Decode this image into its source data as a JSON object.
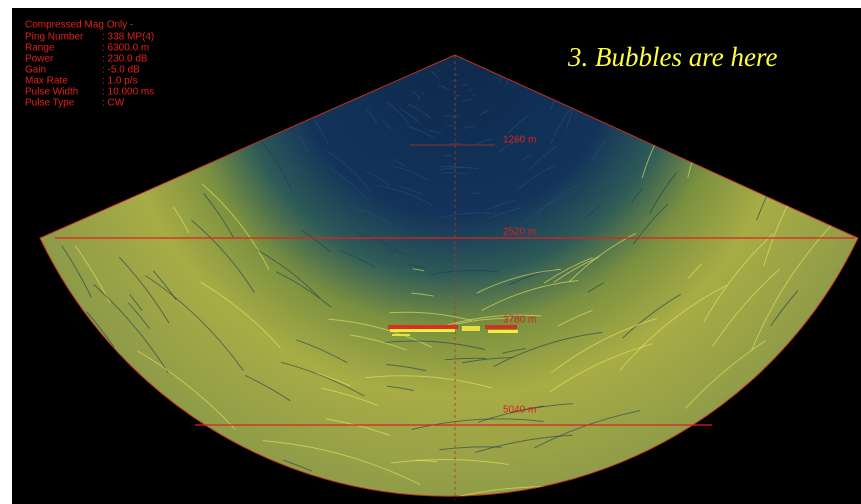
{
  "display": {
    "mode": "Compressed Mag Only  -",
    "fields": [
      {
        "label": "Ping Number",
        "value": ": 338  MP(4)"
      },
      {
        "label": "Range",
        "value": ": 6300.0 m"
      },
      {
        "label": "Power",
        "value": ": 230.0 dB"
      },
      {
        "label": "Gain",
        "value": ": -5.0 dB"
      },
      {
        "label": "Max Rate",
        "value": ": 1.0 p/s"
      },
      {
        "label": "Pulse Width",
        "value": ": 10.000 ms"
      },
      {
        "label": "Pulse Type",
        "value": ": CW"
      }
    ],
    "annotation": "3. Bubbles are here",
    "range_labels": [
      "1260 m",
      "2520 m",
      "3780 m",
      "5040 m"
    ]
  }
}
